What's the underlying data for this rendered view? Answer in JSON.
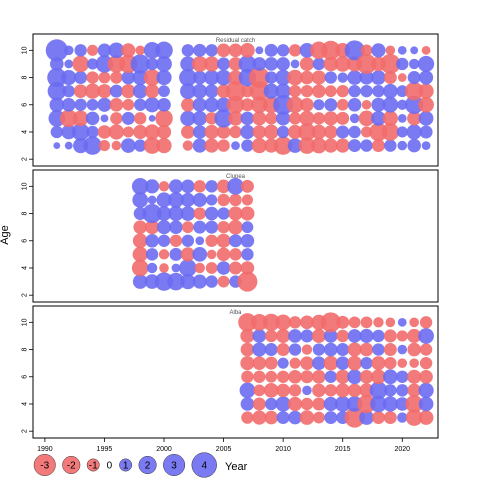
{
  "chart_data": {
    "type": "bubble",
    "title": "",
    "ylabel": "Age",
    "xlabel": "Year",
    "colors": {
      "negative": "#f26b6b",
      "positive": "#6b6bf2"
    },
    "x_ticks": [
      1990,
      1995,
      2000,
      2005,
      2010,
      2015,
      2020
    ],
    "xlim": [
      1989,
      2023
    ],
    "y_ticks": [
      2,
      4,
      6,
      8,
      10
    ],
    "ylim": [
      1.5,
      11.2
    ],
    "ages": [
      3,
      4,
      5,
      6,
      7,
      8,
      9,
      10
    ],
    "legend": {
      "values": [
        -3,
        -2,
        -1,
        0,
        1,
        2,
        3,
        4
      ],
      "labels": [
        "-3",
        "-2",
        "-1",
        "0",
        "1",
        "2",
        "3",
        "4"
      ]
    },
    "panels": [
      {
        "title": "Residual catch",
        "years": [
          1991,
          1992,
          1993,
          1994,
          1995,
          1996,
          1997,
          1998,
          1999,
          2000,
          2002,
          2003,
          2004,
          2005,
          2006,
          2007,
          2008,
          2009,
          2010,
          2011,
          2012,
          2013,
          2014,
          2015,
          2016,
          2017,
          2018,
          2019,
          2020,
          2021,
          2022
        ],
        "residuals_by_year": [
          [
            0.3,
            1.0,
            1.8,
            1.4,
            2.2,
            2.4,
            1.2,
            3.2
          ],
          [
            0.4,
            1.4,
            -2.0,
            1.2,
            1.0,
            1.5,
            0.5,
            0.6
          ],
          [
            1.5,
            2.0,
            -1.6,
            1.0,
            -1.2,
            1.1,
            -1.8,
            1.0
          ],
          [
            2.2,
            1.0,
            1.2,
            0.9,
            -1.5,
            -1.0,
            0.8,
            -0.8
          ],
          [
            -0.8,
            -1.2,
            0.4,
            1.3,
            -1.3,
            -0.9,
            2.0,
            1.2
          ],
          [
            -0.6,
            -1.5,
            -1.0,
            -1.2,
            1.1,
            -1.0,
            -2.0,
            1.6
          ],
          [
            1.4,
            -0.8,
            1.1,
            -0.9,
            -1.3,
            1.2,
            -2.2,
            -1.3
          ],
          [
            1.0,
            -1.3,
            -1.0,
            1.0,
            1.4,
            1.5,
            2.4,
            -0.6
          ],
          [
            -1.8,
            -1.5,
            0.3,
            1.5,
            -1.3,
            -1.8,
            1.0,
            1.8
          ],
          [
            -1.5,
            -1.3,
            -2.0,
            1.2,
            0.9,
            1.5,
            1.6,
            2.0
          ],
          [
            -0.7,
            -1.2,
            1.5,
            -1.2,
            1.6,
            2.0,
            1.5,
            1.0
          ],
          [
            1.3,
            1.2,
            1.4,
            1.3,
            1.4,
            1.2,
            -1.6,
            1.1
          ],
          [
            -1.3,
            -1.3,
            -1.0,
            1.4,
            1.2,
            1.5,
            -1.5,
            1.0
          ],
          [
            -1.0,
            -1.2,
            2.2,
            1.4,
            -1.2,
            1.6,
            1.1,
            -1.2
          ],
          [
            0.5,
            -1.0,
            -1.4,
            -2.0,
            -2.6,
            -1.4,
            -1.2,
            -1.2
          ],
          [
            1.0,
            1.3,
            1.2,
            -1.1,
            -1.0,
            2.0,
            2.0,
            -1.4
          ],
          [
            -1.5,
            -1.2,
            -1.3,
            -1.8,
            -2.4,
            -2.8,
            1.2,
            0.4
          ],
          [
            -1.3,
            -1.4,
            -1.0,
            -1.8,
            1.5,
            1.0,
            1.2,
            1.1
          ],
          [
            -2.2,
            1.0,
            1.3,
            2.6,
            1.5,
            1.6,
            1.2,
            1.0
          ],
          [
            1.4,
            -1.3,
            -1.0,
            -1.8,
            -1.0,
            -1.6,
            0.5,
            -1.0
          ],
          [
            -1.8,
            -2.0,
            -1.5,
            -1.2,
            -1.0,
            -1.2,
            -1.3,
            1.4
          ],
          [
            -1.6,
            -1.4,
            -1.0,
            0.8,
            -1.2,
            -1.3,
            1.0,
            -2.0
          ],
          [
            -1.3,
            -1.2,
            -1.3,
            1.1,
            -0.9,
            1.0,
            -1.4,
            -2.4
          ],
          [
            -1.3,
            1.1,
            -1.1,
            -0.9,
            -1.0,
            0.7,
            -1.6,
            -1.4
          ],
          [
            1.1,
            1.0,
            0.6,
            1.2,
            1.0,
            1.4,
            -1.5,
            2.6
          ],
          [
            1.0,
            -0.8,
            -1.6,
            -0.6,
            1.0,
            1.3,
            -2.6,
            -0.9
          ],
          [
            -1.1,
            -2.2,
            1.4,
            1.3,
            1.0,
            1.4,
            -1.4,
            1.3
          ],
          [
            1.0,
            -2.0,
            -1.5,
            1.6,
            1.4,
            -1.1,
            -2.6,
            -0.6
          ],
          [
            0.6,
            0.8,
            0.5,
            0.7,
            0.9,
            -0.5,
            1.0,
            0.5
          ],
          [
            1.2,
            1.5,
            -1.3,
            2.2,
            -2.2,
            1.1,
            0.7,
            0.4
          ],
          [
            0.5,
            1.1,
            1.4,
            -1.6,
            -1.5,
            1.3,
            1.7,
            -0.5
          ]
        ]
      },
      {
        "title": "Clupea",
        "years": [
          1998,
          1999,
          2000,
          2001,
          2002,
          2003,
          2004,
          2005,
          2006,
          2007
        ],
        "residuals_by_year": [
          [
            1.4,
            -1.8,
            -1.5,
            -1.4,
            -1.2,
            1.1,
            1.6,
            1.8
          ],
          [
            1.4,
            0.7,
            1.0,
            1.2,
            -1.3,
            2.4,
            0.5,
            1.3
          ],
          [
            2.2,
            -0.6,
            -0.7,
            1.0,
            1.3,
            1.4,
            1.5,
            -0.7
          ],
          [
            2.0,
            0.5,
            1.1,
            -1.0,
            1.2,
            1.5,
            1.6,
            1.3
          ],
          [
            1.5,
            2.0,
            -1.3,
            1.0,
            -0.9,
            1.4,
            1.3,
            1.2
          ],
          [
            1.3,
            -0.7,
            1.4,
            0.5,
            1.1,
            -1.0,
            1.3,
            -1.0
          ],
          [
            1.0,
            -0.9,
            -0.6,
            -1.0,
            1.1,
            1.2,
            0.8,
            1.0
          ],
          [
            -0.9,
            1.2,
            -1.2,
            -1.3,
            -1.0,
            1.0,
            -1.0,
            -1.2
          ],
          [
            1.0,
            -1.1,
            -1.0,
            1.1,
            -1.4,
            -1.3,
            -1.0,
            1.8
          ],
          [
            -2.6,
            -1.2,
            1.0,
            1.2,
            0.9,
            -1.3,
            -0.8,
            -1.1
          ]
        ]
      },
      {
        "title": "Alba",
        "years": [
          2007,
          2008,
          2009,
          2010,
          2011,
          2012,
          2013,
          2014,
          2015,
          2016,
          2017,
          2018,
          2019,
          2020,
          2021,
          2022
        ],
        "residuals_by_year": [
          [
            -1.0,
            1.2,
            1.6,
            -1.0,
            -1.3,
            -1.2,
            -1.3,
            -2.2
          ],
          [
            -1.3,
            -1.1,
            -0.9,
            -1.0,
            -1.2,
            1.3,
            1.2,
            -1.8
          ],
          [
            -1.2,
            1.0,
            -1.4,
            -0.9,
            -1.1,
            1.1,
            -1.0,
            -1.9
          ],
          [
            1.1,
            1.5,
            -1.2,
            -1.0,
            0.8,
            -1.1,
            -1.3,
            -1.6
          ],
          [
            1.2,
            -1.3,
            -1.0,
            -1.2,
            -0.8,
            1.0,
            1.2,
            -1.0
          ],
          [
            -1.4,
            -1.0,
            0.6,
            -1.1,
            -1.2,
            -0.7,
            1.1,
            -1.2
          ],
          [
            -0.9,
            -1.1,
            -1.2,
            -1.2,
            1.2,
            1.0,
            -1.3,
            -1.5
          ],
          [
            1.1,
            1.3,
            -1.0,
            1.0,
            -1.4,
            1.2,
            1.2,
            -2.6
          ],
          [
            1.1,
            1.6,
            -1.3,
            -1.3,
            1.2,
            1.1,
            -1.0,
            -1.1
          ],
          [
            -2.6,
            1.6,
            -1.2,
            1.4,
            -1.4,
            -1.3,
            1.2,
            -0.9
          ],
          [
            1.4,
            -2.2,
            -1.3,
            -1.2,
            1.0,
            -1.2,
            1.3,
            -0.9
          ],
          [
            -1.1,
            1.8,
            2.0,
            -1.4,
            -1.3,
            1.0,
            1.0,
            -0.7
          ],
          [
            -1.1,
            1.5,
            1.0,
            1.4,
            -1.0,
            -1.1,
            -1.1,
            -0.6
          ],
          [
            0.7,
            1.2,
            1.0,
            1.0,
            -0.6,
            0.6,
            -0.8,
            0.5
          ],
          [
            -1.8,
            -2.0,
            -1.2,
            -1.3,
            -0.6,
            -1.2,
            -1.3,
            -0.6
          ],
          [
            -1.4,
            1.4,
            1.5,
            -1.2,
            -1.0,
            -1.0,
            1.6,
            -1.0
          ]
        ]
      }
    ]
  }
}
